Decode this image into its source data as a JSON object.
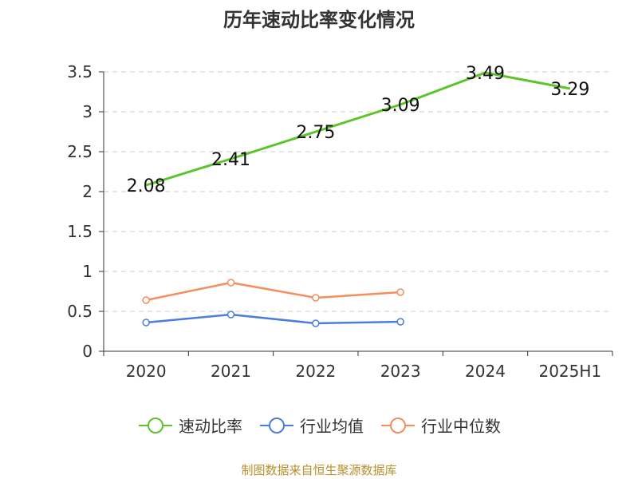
{
  "title": "历年速动比率变化情况",
  "source": "制图数据来自恒生聚源数据库",
  "colors": {
    "速动比率": "#5cc42a",
    "行业均值": "#4a7ddf",
    "行业中位数": "#f58d5c",
    "axis": "#333333",
    "grid": "#cccccc"
  },
  "chart_data": {
    "type": "line",
    "title": "历年速动比率变化情况",
    "categories": [
      "2020",
      "2021",
      "2022",
      "2023",
      "2024",
      "2025H1"
    ],
    "ylim": [
      0,
      3.5
    ],
    "yticks": [
      "0",
      "0.5",
      "1",
      "1.5",
      "2",
      "2.5",
      "3",
      "3.5"
    ],
    "grid": true,
    "legend_position": "bottom",
    "series": [
      {
        "name": "速动比率",
        "values": [
          2.08,
          2.41,
          2.75,
          3.09,
          3.49,
          3.29
        ],
        "data_labels": [
          "2.08",
          "2.41",
          "2.75",
          "3.09",
          "3.49",
          "3.29"
        ]
      },
      {
        "name": "行业均值",
        "values": [
          0.36,
          0.46,
          0.35,
          0.37,
          null,
          null
        ]
      },
      {
        "name": "行业中位数",
        "values": [
          0.64,
          0.86,
          0.67,
          0.74,
          null,
          null
        ]
      }
    ]
  }
}
